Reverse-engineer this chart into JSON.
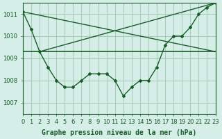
{
  "bg_color": "#d6eee8",
  "grid_color": "#aaccbb",
  "line_color": "#1a5c2a",
  "title": "Graphe pression niveau de la mer (hPa)",
  "xlim": [
    0,
    23
  ],
  "ylim": [
    1006.5,
    1011.5
  ],
  "yticks": [
    1007,
    1008,
    1009,
    1010,
    1011
  ],
  "xticks": [
    0,
    1,
    2,
    3,
    4,
    5,
    6,
    7,
    8,
    9,
    10,
    11,
    12,
    13,
    14,
    15,
    16,
    17,
    18,
    19,
    20,
    21,
    22,
    23
  ],
  "line1_x": [
    0,
    1,
    2,
    3,
    4,
    5,
    6,
    7,
    8,
    9,
    10,
    11,
    12,
    13,
    14,
    15,
    16,
    17,
    18,
    19,
    20,
    21,
    22,
    23
  ],
  "line1_y": [
    1011.1,
    1010.3,
    1009.3,
    1008.6,
    1008.0,
    1007.7,
    1007.7,
    1008.0,
    1008.3,
    1008.3,
    1008.3,
    1008.0,
    1007.3,
    1007.7,
    1008.0,
    1008.0,
    1008.6,
    1009.6,
    1010.0,
    1010.0,
    1010.4,
    1011.0,
    1011.3,
    1011.5
  ],
  "line2_x": [
    0,
    23
  ],
  "line2_y": [
    1009.3,
    1009.3
  ],
  "line3_x": [
    0,
    23
  ],
  "line3_y": [
    1011.1,
    1009.3
  ],
  "line4_x": [
    2,
    23
  ],
  "line4_y": [
    1009.3,
    1011.5
  ],
  "tick_fontsize": 6,
  "title_fontsize": 7
}
